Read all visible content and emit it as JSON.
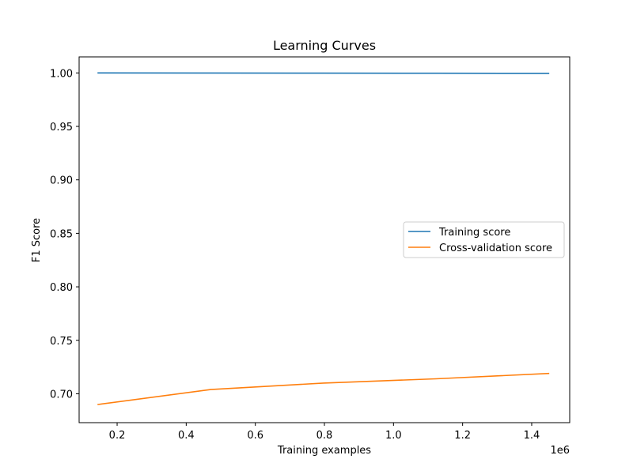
{
  "chart_data": {
    "type": "line",
    "title": "Learning Curves",
    "xlabel": "Training examples",
    "ylabel": "F1 Score",
    "x_offset_label": "1e6",
    "xlim": [
      90000,
      1510000
    ],
    "ylim": [
      0.673,
      1.015
    ],
    "x_ticks": [
      200000,
      400000,
      600000,
      800000,
      1000000,
      1200000,
      1400000
    ],
    "x_tick_labels": [
      "0.2",
      "0.4",
      "0.6",
      "0.8",
      "1.0",
      "1.2",
      "1.4"
    ],
    "y_ticks": [
      0.7,
      0.75,
      0.8,
      0.85,
      0.9,
      0.95,
      1.0
    ],
    "y_tick_labels": [
      "0.70",
      "0.75",
      "0.80",
      "0.85",
      "0.90",
      "0.95",
      "1.00"
    ],
    "x": [
      145000,
      471000,
      797000,
      1123000,
      1449000
    ],
    "series": [
      {
        "name": "Training score",
        "color": "#1f77b4",
        "values": [
          1.0,
          0.9999,
          0.9998,
          0.9997,
          0.9996
        ]
      },
      {
        "name": "Cross-validation score",
        "color": "#ff7f0e",
        "values": [
          0.69,
          0.704,
          0.71,
          0.714,
          0.719
        ]
      }
    ],
    "legend_position": "center-right",
    "grid": false
  }
}
